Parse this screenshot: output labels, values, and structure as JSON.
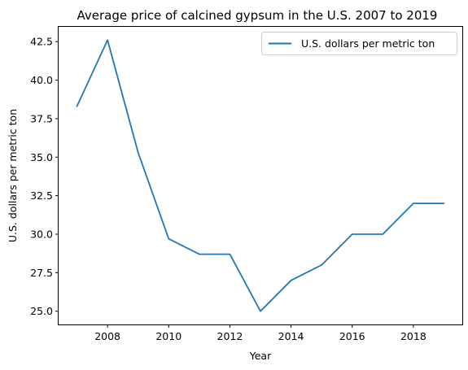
{
  "chart_data": {
    "type": "line",
    "title": "Average price of calcined gypsum in the U.S. 2007 to 2019",
    "xlabel": "Year",
    "ylabel": "U.S. dollars per metric ton",
    "x": [
      2007,
      2008,
      2009,
      2010,
      2011,
      2012,
      2013,
      2014,
      2015,
      2016,
      2017,
      2018,
      2019
    ],
    "series": [
      {
        "name": "U.S. dollars per metric ton",
        "values": [
          38.3,
          42.6,
          35.3,
          29.7,
          28.7,
          28.7,
          25.0,
          27.0,
          28.0,
          30.0,
          30.0,
          32.0,
          32.0
        ],
        "color": "#1f77b4"
      }
    ],
    "xlim": [
      2006.4,
      2019.6
    ],
    "ylim": [
      24.14,
      43.46
    ],
    "xticks": [
      2008,
      2010,
      2012,
      2014,
      2016,
      2018
    ],
    "xtick_labels": [
      "2008",
      "2010",
      "2012",
      "2014",
      "2016",
      "2018"
    ],
    "yticks": [
      25.0,
      27.5,
      30.0,
      32.5,
      35.0,
      37.5,
      40.0,
      42.5
    ],
    "ytick_labels": [
      "25.0",
      "27.5",
      "30.0",
      "32.5",
      "35.0",
      "37.5",
      "40.0",
      "42.5"
    ],
    "grid": false,
    "legend_position": "top-right"
  }
}
